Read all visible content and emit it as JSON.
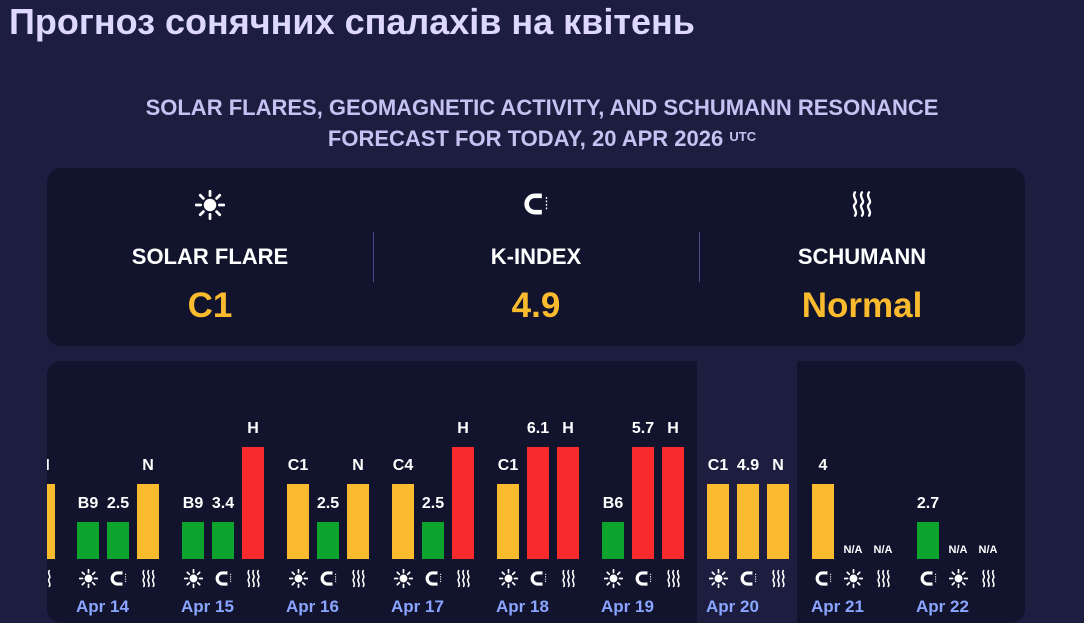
{
  "page": {
    "title": "Прогноз сонячних спалахів на квітень",
    "subtitle_line1": "SOLAR FLARES, GEOMAGNETIC ACTIVITY, AND SCHUMANN RESONANCE",
    "subtitle_line2": "FORECAST FOR TODAY, 20 APR 2026",
    "subtitle_sup": "UTC"
  },
  "summary": [
    {
      "icon": "sun-icon",
      "label": "SOLAR FLARE",
      "value": "C1"
    },
    {
      "icon": "magnet-icon",
      "label": "K-INDEX",
      "value": "4.9"
    },
    {
      "icon": "waves-icon",
      "label": "SCHUMANN",
      "value": "Normal"
    }
  ],
  "colors": {
    "green": "#0ca42d",
    "yellow": "#fbbb2e",
    "red": "#f82a2c",
    "date_label": "#8aa5ff",
    "value": "#fbbb2e"
  },
  "chart_data": {
    "type": "bar",
    "level_scale": {
      "green": 1,
      "yellow": 2,
      "red": 3,
      "na": 0
    },
    "partial_left": {
      "bars": [
        {
          "level": "yellow",
          "label": "H"
        }
      ],
      "icons": [
        "waves-icon"
      ]
    },
    "days": [
      {
        "date": "Apr 14",
        "bars": [
          {
            "metric": "flare",
            "label": "B9",
            "level": "green"
          },
          {
            "metric": "kindex",
            "label": "2.5",
            "level": "green"
          },
          {
            "metric": "schumann",
            "label": "N",
            "level": "yellow"
          }
        ],
        "icons": [
          "sun-icon",
          "magnet-icon",
          "waves-icon"
        ]
      },
      {
        "date": "Apr 15",
        "bars": [
          {
            "metric": "flare",
            "label": "B9",
            "level": "green"
          },
          {
            "metric": "kindex",
            "label": "3.4",
            "level": "green"
          },
          {
            "metric": "schumann",
            "label": "H",
            "level": "red"
          }
        ],
        "icons": [
          "sun-icon",
          "magnet-icon",
          "waves-icon"
        ]
      },
      {
        "date": "Apr 16",
        "bars": [
          {
            "metric": "flare",
            "label": "C1",
            "level": "yellow"
          },
          {
            "metric": "kindex",
            "label": "2.5",
            "level": "green"
          },
          {
            "metric": "schumann",
            "label": "N",
            "level": "yellow"
          }
        ],
        "icons": [
          "sun-icon",
          "magnet-icon",
          "waves-icon"
        ]
      },
      {
        "date": "Apr 17",
        "bars": [
          {
            "metric": "flare",
            "label": "C4",
            "level": "yellow"
          },
          {
            "metric": "kindex",
            "label": "2.5",
            "level": "green"
          },
          {
            "metric": "schumann",
            "label": "H",
            "level": "red"
          }
        ],
        "icons": [
          "sun-icon",
          "magnet-icon",
          "waves-icon"
        ]
      },
      {
        "date": "Apr 18",
        "bars": [
          {
            "metric": "flare",
            "label": "C1",
            "level": "yellow"
          },
          {
            "metric": "kindex",
            "label": "6.1",
            "level": "red"
          },
          {
            "metric": "schumann",
            "label": "H",
            "level": "red"
          }
        ],
        "icons": [
          "sun-icon",
          "magnet-icon",
          "waves-icon"
        ]
      },
      {
        "date": "Apr 19",
        "bars": [
          {
            "metric": "flare",
            "label": "B6",
            "level": "green"
          },
          {
            "metric": "kindex",
            "label": "5.7",
            "level": "red"
          },
          {
            "metric": "schumann",
            "label": "H",
            "level": "red"
          }
        ],
        "icons": [
          "sun-icon",
          "magnet-icon",
          "waves-icon"
        ]
      },
      {
        "date": "Apr 20",
        "today": true,
        "bars": [
          {
            "metric": "flare",
            "label": "C1",
            "level": "yellow"
          },
          {
            "metric": "kindex",
            "label": "4.9",
            "level": "yellow"
          },
          {
            "metric": "schumann",
            "label": "N",
            "level": "yellow"
          }
        ],
        "icons": [
          "sun-icon",
          "magnet-icon",
          "waves-icon"
        ]
      },
      {
        "date": "Apr 21",
        "bars": [
          {
            "metric": "kindex",
            "label": "4",
            "level": "yellow"
          },
          {
            "metric": "flare",
            "label": "N/A",
            "level": "na"
          },
          {
            "metric": "schumann",
            "label": "N/A",
            "level": "na"
          }
        ],
        "icons": [
          "magnet-icon",
          "sun-icon",
          "waves-icon"
        ]
      },
      {
        "date": "Apr 22",
        "bars": [
          {
            "metric": "kindex",
            "label": "2.7",
            "level": "green"
          },
          {
            "metric": "flare",
            "label": "N/A",
            "level": "na"
          },
          {
            "metric": "schumann",
            "label": "N/A",
            "level": "na"
          }
        ],
        "icons": [
          "magnet-icon",
          "sun-icon",
          "waves-icon"
        ]
      }
    ]
  }
}
